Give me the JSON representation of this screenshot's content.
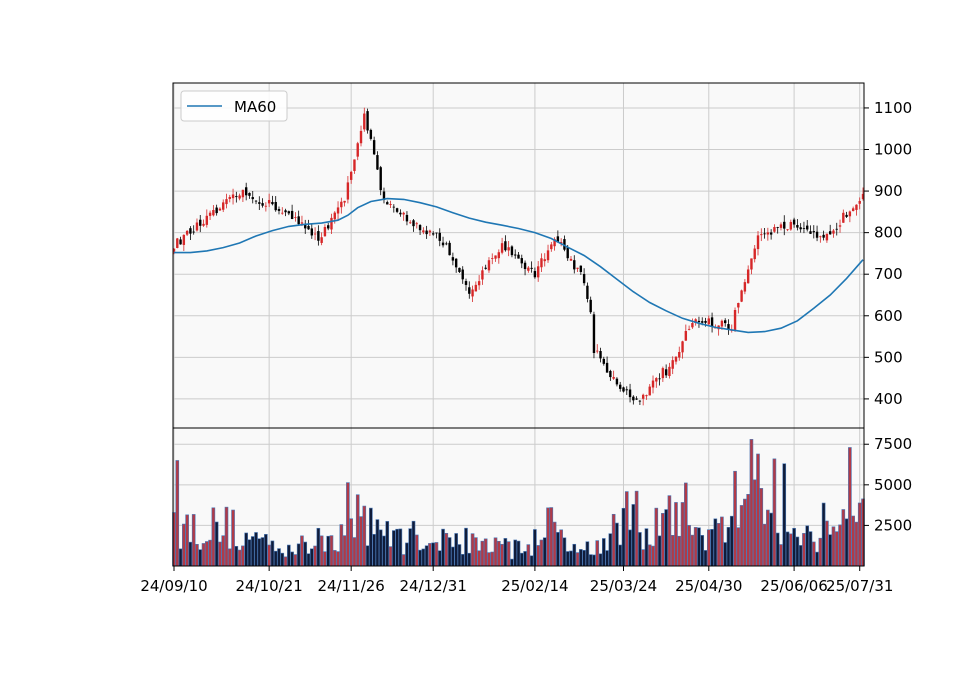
{
  "chart_data": {
    "type": "candlestick",
    "colors": {
      "up": "#d62728",
      "down": "#000000",
      "ma": "#1f77b4",
      "vol_up": "#b03a48",
      "vol_down": "#101c3a",
      "vol_edge": "#4a78b5",
      "panel_bg": "#f9f9f9",
      "grid": "#cccccc"
    },
    "legend": {
      "label": "MA60",
      "position": "top-left"
    },
    "price_axis": {
      "ylim": [
        330,
        1160
      ],
      "ticks": [
        400,
        500,
        600,
        700,
        800,
        900,
        1000,
        1100
      ]
    },
    "volume_axis": {
      "ylim": [
        0,
        8500
      ],
      "ticks": [
        2500,
        5000,
        7500
      ]
    },
    "x_axis": {
      "ticks": [
        "24/09/10",
        "24/10/21",
        "24/11/26",
        "24/12/31",
        "25/02/14",
        "25/03/24",
        "25/04/30",
        "25/06/06",
        "25/07/31"
      ]
    },
    "date_range": [
      "24/09/10",
      "25/07/31"
    ],
    "segments": [
      {
        "start": 0,
        "end": 20,
        "from": 770,
        "to": 895,
        "vol": 2600
      },
      {
        "start": 20,
        "end": 32,
        "from": 895,
        "to": 860,
        "vol": 1800
      },
      {
        "start": 32,
        "end": 44,
        "from": 860,
        "to": 785,
        "vol": 1300
      },
      {
        "start": 44,
        "end": 52,
        "from": 785,
        "to": 880,
        "vol": 2200
      },
      {
        "start": 52,
        "end": 58,
        "from": 880,
        "to": 1090,
        "vol": 3600
      },
      {
        "start": 58,
        "end": 64,
        "from": 1090,
        "to": 870,
        "vol": 3300
      },
      {
        "start": 64,
        "end": 82,
        "from": 870,
        "to": 780,
        "vol": 2000
      },
      {
        "start": 82,
        "end": 90,
        "from": 780,
        "to": 650,
        "vol": 1900
      },
      {
        "start": 90,
        "end": 100,
        "from": 650,
        "to": 775,
        "vol": 1500
      },
      {
        "start": 100,
        "end": 110,
        "from": 775,
        "to": 700,
        "vol": 1200
      },
      {
        "start": 110,
        "end": 116,
        "from": 700,
        "to": 790,
        "vol": 2800
      },
      {
        "start": 116,
        "end": 124,
        "from": 790,
        "to": 700,
        "vol": 2200
      },
      {
        "start": 124,
        "end": 128,
        "from": 700,
        "to": 585,
        "vol": 1200
      },
      {
        "start": 128,
        "end": 134,
        "from": 520,
        "to": 450,
        "vol": 1700
      },
      {
        "start": 134,
        "end": 142,
        "from": 450,
        "to": 380,
        "vol": 3200
      },
      {
        "start": 142,
        "end": 150,
        "from": 390,
        "to": 480,
        "vol": 2600
      },
      {
        "start": 150,
        "end": 158,
        "from": 450,
        "to": 590,
        "vol": 3600
      },
      {
        "start": 158,
        "end": 170,
        "from": 590,
        "to": 575,
        "vol": 2300
      },
      {
        "start": 170,
        "end": 178,
        "from": 575,
        "to": 800,
        "vol": 4500
      },
      {
        "start": 178,
        "end": 188,
        "from": 800,
        "to": 815,
        "vol": 3400
      },
      {
        "start": 188,
        "end": 198,
        "from": 815,
        "to": 780,
        "vol": 2000
      },
      {
        "start": 198,
        "end": 210,
        "from": 780,
        "to": 895,
        "vol": 3300
      }
    ],
    "ma60": [
      [
        0,
        752
      ],
      [
        5,
        752
      ],
      [
        10,
        756
      ],
      [
        15,
        764
      ],
      [
        20,
        775
      ],
      [
        25,
        792
      ],
      [
        30,
        805
      ],
      [
        35,
        815
      ],
      [
        40,
        820
      ],
      [
        45,
        823
      ],
      [
        50,
        830
      ],
      [
        53,
        842
      ],
      [
        56,
        860
      ],
      [
        60,
        875
      ],
      [
        65,
        882
      ],
      [
        70,
        880
      ],
      [
        75,
        872
      ],
      [
        80,
        862
      ],
      [
        85,
        848
      ],
      [
        90,
        835
      ],
      [
        95,
        825
      ],
      [
        100,
        818
      ],
      [
        105,
        810
      ],
      [
        110,
        800
      ],
      [
        115,
        786
      ],
      [
        120,
        765
      ],
      [
        125,
        745
      ],
      [
        130,
        718
      ],
      [
        135,
        688
      ],
      [
        140,
        658
      ],
      [
        145,
        632
      ],
      [
        150,
        612
      ],
      [
        155,
        594
      ],
      [
        160,
        582
      ],
      [
        165,
        572
      ],
      [
        170,
        566
      ],
      [
        175,
        560
      ],
      [
        180,
        562
      ],
      [
        185,
        570
      ],
      [
        190,
        588
      ],
      [
        195,
        618
      ],
      [
        200,
        650
      ],
      [
        205,
        690
      ],
      [
        210,
        735
      ]
    ]
  }
}
